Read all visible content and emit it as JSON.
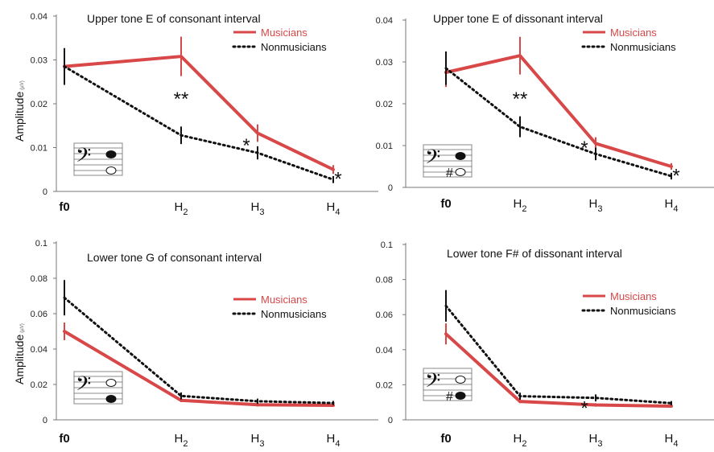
{
  "figure": {
    "ylabel": "Amplitude",
    "ylabel_unit": "(µV)",
    "colors": {
      "musicians": "#d94848",
      "nonmusicians": "#111111"
    }
  },
  "chart_data": [
    {
      "type": "line",
      "title": "Upper tone E of consonant interval",
      "ylabel": "Amplitude (µV)",
      "categories": [
        "f0",
        "H2",
        "H3",
        "H4"
      ],
      "ylim": [
        0,
        0.04
      ],
      "yticks": [
        "0",
        "0.01",
        "0.02",
        "0.03",
        "0.04"
      ],
      "legend_position": "top-right",
      "series": [
        {
          "name": "Musicians",
          "style": "solid",
          "values": [
            0.0285,
            0.0308,
            0.0133,
            0.005
          ],
          "errors": [
            0.004,
            0.0045,
            0.002,
            0.001
          ]
        },
        {
          "name": "Nonmusicians",
          "style": "dotted",
          "values": [
            0.0285,
            0.0128,
            0.0088,
            0.0027
          ],
          "errors": [
            0.0042,
            0.002,
            0.0015,
            0.0008
          ]
        }
      ],
      "annotations": [
        {
          "text": "**",
          "category": "H2",
          "y": 0.0215
        },
        {
          "text": "*",
          "category": "H3",
          "y": 0.0108
        },
        {
          "text": "*",
          "category": "H4",
          "y": 0.0032
        }
      ],
      "notation": {
        "accidental": "",
        "upper_filled": true,
        "lower_filled": false
      }
    },
    {
      "type": "line",
      "title": "Upper tone E of dissonant interval",
      "ylabel": "",
      "categories": [
        "f0",
        "H2",
        "H3",
        "H4"
      ],
      "ylim": [
        0,
        0.04
      ],
      "yticks": [
        "0",
        "0.01",
        "0.02",
        "0.03",
        "0.04"
      ],
      "legend_position": "top-right",
      "series": [
        {
          "name": "Musicians",
          "style": "solid",
          "values": [
            0.0275,
            0.0315,
            0.0105,
            0.005
          ],
          "errors": [
            0.0035,
            0.0045,
            0.0015,
            0.0008
          ]
        },
        {
          "name": "Nonmusicians",
          "style": "dotted",
          "values": [
            0.0285,
            0.0145,
            0.008,
            0.0027
          ],
          "errors": [
            0.004,
            0.0025,
            0.0015,
            0.0008
          ]
        }
      ],
      "annotations": [
        {
          "text": "**",
          "category": "H2",
          "y": 0.0215
        },
        {
          "text": "*",
          "category": "H3",
          "y": 0.0098
        },
        {
          "text": "*",
          "category": "H4",
          "y": 0.0032
        }
      ],
      "notation": {
        "accidental": "#",
        "upper_filled": true,
        "lower_filled": false
      }
    },
    {
      "type": "line",
      "title": "Lower tone G of consonant interval",
      "ylabel": "Amplitude (µV)",
      "categories": [
        "f0",
        "H2",
        "H3",
        "H4"
      ],
      "ylim": [
        0,
        0.1
      ],
      "yticks": [
        "0",
        "0.02",
        "0.04",
        "0.06",
        "0.08",
        "0.1"
      ],
      "legend_position": "top-right",
      "series": [
        {
          "name": "Musicians",
          "style": "solid",
          "values": [
            0.05,
            0.011,
            0.0085,
            0.0082
          ],
          "errors": [
            0.005,
            0.001,
            0.001,
            0.0008
          ]
        },
        {
          "name": "Nonmusicians",
          "style": "dotted",
          "values": [
            0.069,
            0.0135,
            0.0105,
            0.0095
          ],
          "errors": [
            0.01,
            0.002,
            0.0015,
            0.0012
          ]
        }
      ],
      "annotations": [],
      "notation": {
        "accidental": "",
        "upper_filled": false,
        "lower_filled": true
      }
    },
    {
      "type": "line",
      "title": "Lower tone F# of dissonant interval",
      "ylabel": "",
      "categories": [
        "f0",
        "H2",
        "H3",
        "H4"
      ],
      "ylim": [
        0,
        0.1
      ],
      "yticks": [
        "0",
        "0.02",
        "0.04",
        "0.06",
        "0.08",
        "0.1"
      ],
      "legend_position": "top-right",
      "series": [
        {
          "name": "Musicians",
          "style": "solid",
          "values": [
            0.049,
            0.0105,
            0.0085,
            0.0078
          ],
          "errors": [
            0.006,
            0.001,
            0.001,
            0.0008
          ]
        },
        {
          "name": "Nonmusicians",
          "style": "dotted",
          "values": [
            0.065,
            0.0135,
            0.0125,
            0.0095
          ],
          "errors": [
            0.009,
            0.002,
            0.002,
            0.0012
          ]
        }
      ],
      "annotations": [
        {
          "text": "*",
          "category": "H3",
          "y": 0.0075
        }
      ],
      "notation": {
        "accidental": "#",
        "upper_filled": false,
        "lower_filled": true
      }
    }
  ]
}
